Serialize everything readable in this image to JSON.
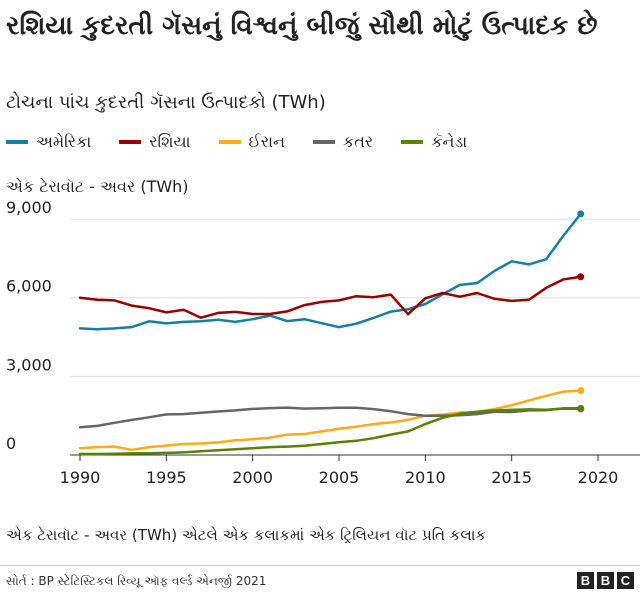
{
  "header": {
    "title": "રશિયા કુદરતી ગૅસનું વિશ્વનું બીજું સૌથી મોટું ઉત્પાદક છે",
    "subtitle": "ટોચના પાંચ કુદરતી ગૅસના ઉત્પાદકો (TWh)"
  },
  "unit_label": "એક ટેરાવૉટ - અવર (TWh)",
  "footnote": "એક ટેરાવૉટ - અવર (TWh) એટલે એક કલાકમાં એક ટ્રિલિયન વૉટ પ્રતિ કલાક",
  "source": "સોર્ત : BP સ્ટેટિસ્ટિકલ રિવ્યૂ ઑફ વર્લ્ડ એનર્જી 2021",
  "logo": {
    "letters": [
      "B",
      "B",
      "C"
    ]
  },
  "chart_data": {
    "type": "line",
    "title": "રશિયા કુદરતી ગૅસનું વિશ્વનું બીજું સૌથી મોટું ઉત્પાદક છે",
    "subtitle": "ટોચના પાંચ કુદરતી ગૅસના ઉત્પાદકો (TWh)",
    "ylabel": "એક ટેરાવૉટ - અવર (TWh)",
    "xlim": [
      1990,
      2020
    ],
    "ylim": [
      0,
      9500
    ],
    "x_ticks": [
      1990,
      1995,
      2000,
      2005,
      2010,
      2015,
      2020
    ],
    "y_ticks": [
      0,
      3000,
      6000,
      9000
    ],
    "y_tick_labels": [
      "0",
      "3,000",
      "6,000",
      "9,000"
    ],
    "grid": "horizontal",
    "legend_position": "top",
    "x": [
      1990,
      1991,
      1992,
      1993,
      1994,
      1995,
      1996,
      1997,
      1998,
      1999,
      2000,
      2001,
      2002,
      2003,
      2004,
      2005,
      2006,
      2007,
      2008,
      2009,
      2010,
      2011,
      2012,
      2013,
      2014,
      2015,
      2016,
      2017,
      2018,
      2019
    ],
    "series": [
      {
        "name": "અમેરિકા",
        "color": "#1380A1",
        "values": [
          4830,
          4800,
          4830,
          4880,
          5100,
          5020,
          5080,
          5100,
          5160,
          5080,
          5180,
          5320,
          5110,
          5180,
          5030,
          4880,
          5010,
          5230,
          5470,
          5560,
          5760,
          6130,
          6490,
          6560,
          7020,
          7390,
          7270,
          7470,
          8370,
          9200
        ]
      },
      {
        "name": "રશિયા",
        "color": "#990000",
        "values": [
          6000,
          5920,
          5900,
          5700,
          5600,
          5440,
          5540,
          5240,
          5420,
          5460,
          5380,
          5380,
          5480,
          5720,
          5840,
          5900,
          6060,
          6020,
          6120,
          5370,
          5980,
          6180,
          6040,
          6180,
          5960,
          5880,
          5920,
          6380,
          6700,
          6800
        ]
      },
      {
        "name": "ઈરાન",
        "color": "#FAAB18",
        "values": [
          260,
          300,
          320,
          200,
          300,
          360,
          420,
          440,
          480,
          560,
          600,
          660,
          780,
          800,
          900,
          1000,
          1080,
          1180,
          1240,
          1340,
          1500,
          1540,
          1620,
          1640,
          1750,
          1900,
          2080,
          2260,
          2420,
          2460
        ]
      },
      {
        "name": "કતર",
        "color": "#666666",
        "values": [
          1060,
          1110,
          1230,
          1340,
          1440,
          1550,
          1560,
          1610,
          1660,
          1700,
          1760,
          1790,
          1810,
          1770,
          1780,
          1800,
          1800,
          1750,
          1670,
          1560,
          1500,
          1500,
          1520,
          1560,
          1650,
          1640,
          1700,
          1710,
          1780,
          1780
        ]
      },
      {
        "name": "કૅનેડા",
        "color": "#588300",
        "values": [
          40,
          40,
          50,
          60,
          70,
          80,
          100,
          140,
          180,
          220,
          260,
          300,
          320,
          350,
          420,
          490,
          540,
          640,
          780,
          900,
          1180,
          1420,
          1570,
          1650,
          1700,
          1720,
          1740,
          1730,
          1770,
          1760
        ]
      }
    ]
  }
}
